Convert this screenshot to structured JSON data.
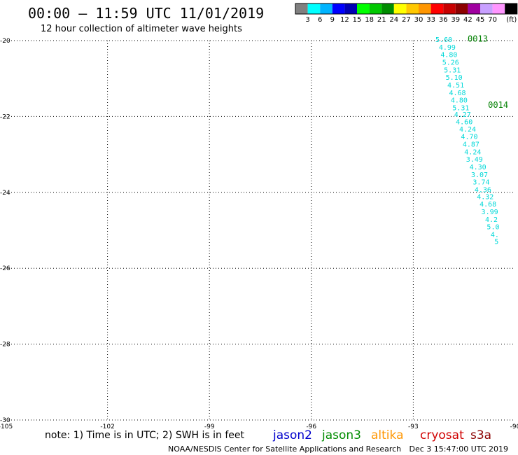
{
  "header": {
    "title": "00:00 – 11:59 UTC 11/01/2019",
    "subtitle": "12 hour collection of altimeter wave heights"
  },
  "legend": {
    "unit": "(ft)",
    "bins": [
      {
        "color": "#808080",
        "label": ""
      },
      {
        "color": "#00ffff",
        "label": "3"
      },
      {
        "color": "#00b4ff",
        "label": "6"
      },
      {
        "color": "#0000ff",
        "label": "9"
      },
      {
        "color": "#0000b4",
        "label": "12"
      },
      {
        "color": "#00ff00",
        "label": "15"
      },
      {
        "color": "#00c800",
        "label": "18"
      },
      {
        "color": "#008c00",
        "label": "21"
      },
      {
        "color": "#ffff00",
        "label": "24"
      },
      {
        "color": "#ffc800",
        "label": "27"
      },
      {
        "color": "#ff9600",
        "label": "30"
      },
      {
        "color": "#ff0000",
        "label": "33"
      },
      {
        "color": "#c80000",
        "label": "36"
      },
      {
        "color": "#8c0000",
        "label": "39"
      },
      {
        "color": "#a000a0",
        "label": "42"
      },
      {
        "color": "#c8a0ff",
        "label": "45"
      },
      {
        "color": "#ff96ff",
        "label": "70"
      },
      {
        "color": "#000000",
        "label": ""
      }
    ]
  },
  "chart_data": {
    "type": "scatter",
    "xlim": [
      -105,
      -90
    ],
    "ylim": [
      -30,
      -20
    ],
    "x_ticks": [
      -105,
      -102,
      -99,
      -96,
      -93,
      -90
    ],
    "y_ticks": [
      -20,
      -22,
      -24,
      -26,
      -28,
      -30
    ],
    "x_tick_labels": [
      "-105",
      "-102",
      "-99",
      "-96",
      "-93",
      "-90"
    ],
    "y_tick_labels": [
      "-20",
      "-22",
      "-24",
      "-26",
      "-28",
      "-30"
    ],
    "grid": true,
    "tracks": [
      {
        "label": "0013",
        "color": "#008000",
        "lon": -91.4,
        "lat": -19.95
      },
      {
        "label": "0014",
        "color": "#008000",
        "lon": -90.8,
        "lat": -21.7
      }
    ],
    "points": [
      {
        "lon": -92.1,
        "lat": -19.98,
        "value": "5.60"
      },
      {
        "lon": -92.0,
        "lat": -20.18,
        "value": "4.99"
      },
      {
        "lon": -91.95,
        "lat": -20.38,
        "value": "4.80"
      },
      {
        "lon": -91.9,
        "lat": -20.58,
        "value": "5.26"
      },
      {
        "lon": -91.85,
        "lat": -20.78,
        "value": "5.31"
      },
      {
        "lon": -91.8,
        "lat": -20.98,
        "value": "5.10"
      },
      {
        "lon": -91.75,
        "lat": -21.18,
        "value": "4.51"
      },
      {
        "lon": -91.7,
        "lat": -21.38,
        "value": "4.68"
      },
      {
        "lon": -91.65,
        "lat": -21.58,
        "value": "4.80"
      },
      {
        "lon": -91.6,
        "lat": -21.78,
        "value": "5.31"
      },
      {
        "lon": -91.55,
        "lat": -21.96,
        "value": "4.27"
      },
      {
        "lon": -91.5,
        "lat": -22.15,
        "value": "4.60"
      },
      {
        "lon": -91.4,
        "lat": -22.34,
        "value": "4.24"
      },
      {
        "lon": -91.35,
        "lat": -22.54,
        "value": "4.70"
      },
      {
        "lon": -91.3,
        "lat": -22.74,
        "value": "4.87"
      },
      {
        "lon": -91.25,
        "lat": -22.94,
        "value": "4.24"
      },
      {
        "lon": -91.2,
        "lat": -23.14,
        "value": "3.49"
      },
      {
        "lon": -91.1,
        "lat": -23.34,
        "value": "4.30"
      },
      {
        "lon": -91.05,
        "lat": -23.54,
        "value": "3.07"
      },
      {
        "lon": -91.0,
        "lat": -23.74,
        "value": "3.74"
      },
      {
        "lon": -90.95,
        "lat": -23.94,
        "value": "4.36"
      },
      {
        "lon": -90.88,
        "lat": -24.12,
        "value": "4.32"
      },
      {
        "lon": -90.8,
        "lat": -24.32,
        "value": "4.68"
      },
      {
        "lon": -90.75,
        "lat": -24.52,
        "value": "3.99"
      },
      {
        "lon": -90.7,
        "lat": -24.72,
        "value": "4.2"
      },
      {
        "lon": -90.65,
        "lat": -24.92,
        "value": "5.0"
      },
      {
        "lon": -90.6,
        "lat": -25.12,
        "value": "4."
      },
      {
        "lon": -90.55,
        "lat": -25.3,
        "value": "5"
      }
    ],
    "point_color": "#00d8d8"
  },
  "footer": {
    "note": "note: 1) Time is in UTC; 2) SWH is in feet",
    "satellites": [
      {
        "name": "jason2",
        "color": "#0000cc"
      },
      {
        "name": "jason3",
        "color": "#008c00"
      },
      {
        "name": "altika",
        "color": "#ff9600"
      },
      {
        "name": "cryosat",
        "color": "#d00000"
      },
      {
        "name": "s3a",
        "color": "#8c0000"
      }
    ],
    "credit": "NOAA/NESDIS Center for Satellite Applications and Research",
    "timestamp": "Dec  3 15:47:00 UTC 2019"
  }
}
